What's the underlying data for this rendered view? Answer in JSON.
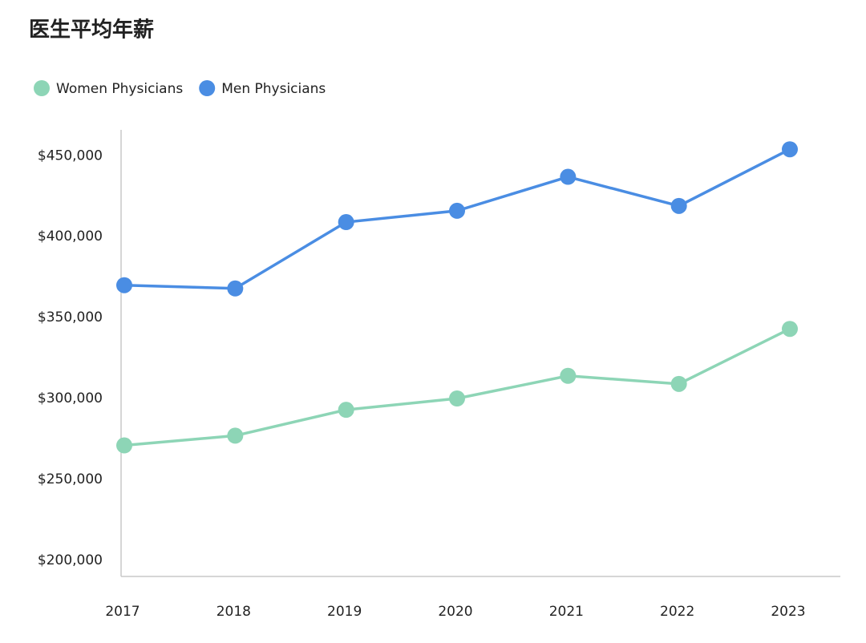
{
  "chart_data": {
    "type": "line",
    "title": "医生平均年薪",
    "categories": [
      "2017",
      "2018",
      "2019",
      "2020",
      "2021",
      "2022",
      "2023"
    ],
    "series": [
      {
        "name": "Women Physicians",
        "color": "#8dd5b6",
        "values": [
          271000,
          277000,
          293000,
          300000,
          314000,
          309000,
          343000
        ]
      },
      {
        "name": "Men Physicians",
        "color": "#4a8de3",
        "values": [
          370000,
          368000,
          409000,
          416000,
          437000,
          419000,
          454000
        ]
      }
    ],
    "ylim": [
      190000,
      466000
    ],
    "yticks": [
      {
        "value": 200000,
        "label": "$200,000"
      },
      {
        "value": 250000,
        "label": "$250,000"
      },
      {
        "value": 300000,
        "label": "$300,000"
      },
      {
        "value": 350000,
        "label": "$350,000"
      },
      {
        "value": 400000,
        "label": "$400,000"
      },
      {
        "value": 450000,
        "label": "$450,000"
      }
    ],
    "legend": "top-left"
  }
}
